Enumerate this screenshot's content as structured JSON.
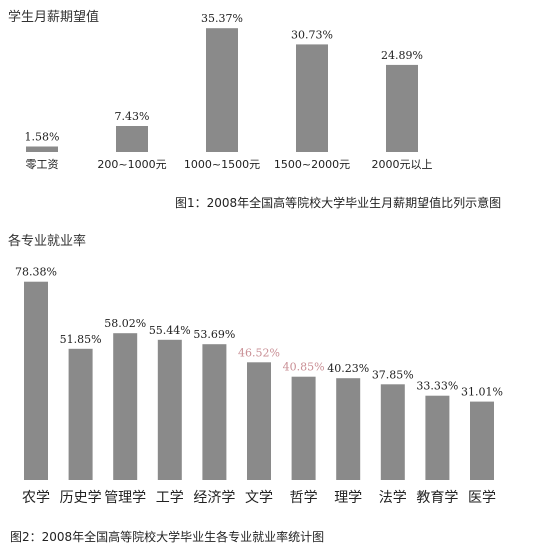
{
  "chart_data": [
    {
      "type": "bar",
      "title": "",
      "ylabel": "学生月薪期望值",
      "caption": "图1：2008年全国高等院校大学毕业生月薪期望值比列示意图",
      "categories": [
        "零工资",
        "200~1000元",
        "1000~1500元",
        "1500~2000元",
        "2000元以上"
      ],
      "values": [
        1.58,
        7.43,
        35.37,
        30.73,
        24.89
      ],
      "value_labels": [
        "1.58%",
        "7.43%",
        "35.37%",
        "30.73%",
        "24.89%"
      ],
      "ylim": [
        0,
        40
      ],
      "bar_color": "#8a8a8a",
      "grid": false,
      "legend": "none"
    },
    {
      "type": "bar",
      "title": "",
      "ylabel": "各专业就业率",
      "caption": "图2：2008年全国高等院校大学毕业生各专业就业率统计图",
      "categories": [
        "农学",
        "历史学",
        "管理学",
        "工学",
        "经济学",
        "文学",
        "哲学",
        "理学",
        "法学",
        "教育学",
        "医学"
      ],
      "values": [
        78.38,
        51.85,
        58.02,
        55.44,
        53.69,
        46.52,
        40.85,
        40.23,
        37.85,
        33.33,
        31.01
      ],
      "value_labels": [
        "78.38%",
        "51.85%",
        "58.02%",
        "55.44%",
        "53.69%",
        "46.52%",
        "40.85%",
        "40.23%",
        "37.85%",
        "33.33%",
        "31.01%"
      ],
      "ylim": [
        0,
        85
      ],
      "bar_color": "#8a8a8a",
      "grid": false,
      "legend": "none"
    }
  ]
}
